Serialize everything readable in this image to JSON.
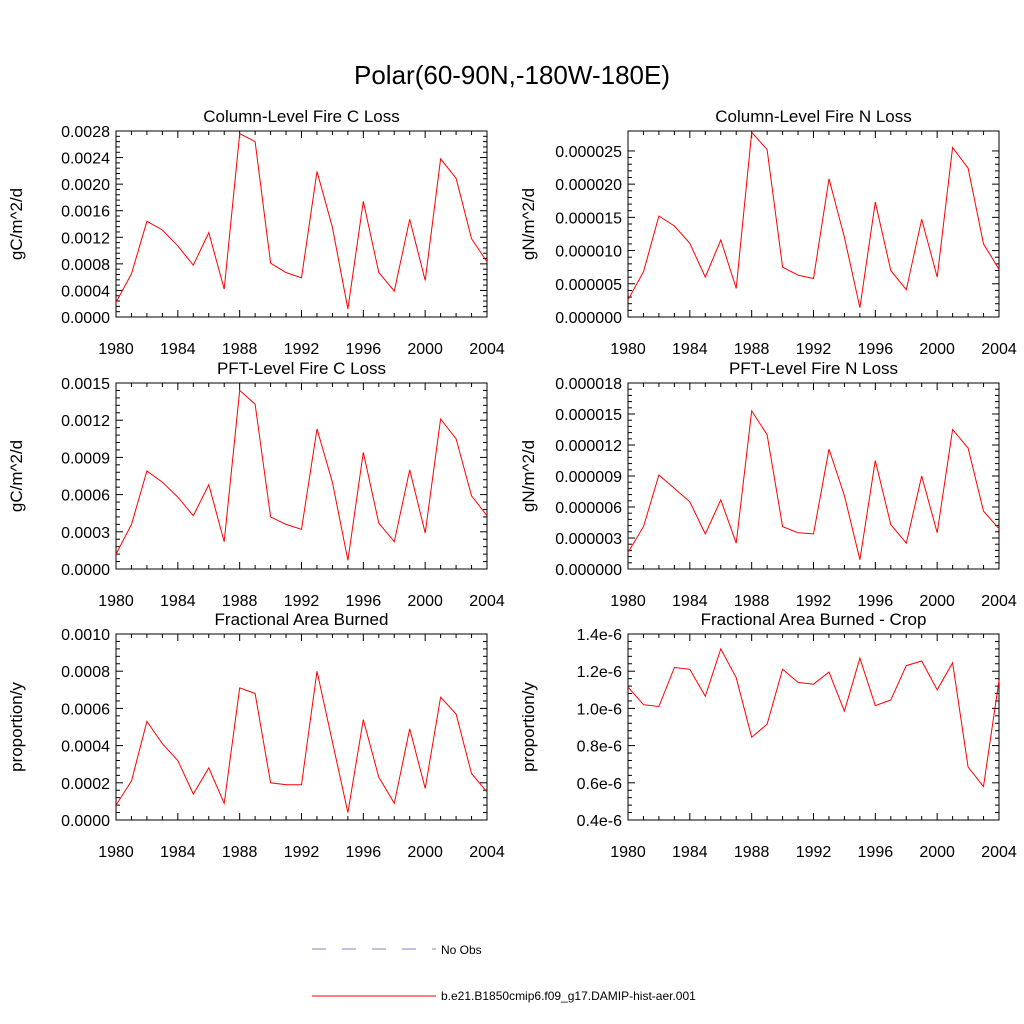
{
  "figure": {
    "title": "Polar(60-90N,-180W-180E)"
  },
  "legend": {
    "entries": [
      {
        "label": "No Obs",
        "color": "#8080c0",
        "dashed": true
      },
      {
        "label": "b.e21.B1850cmip6.f09_g17.DAMIP-hist-aer.001",
        "color": "#ff0000",
        "dashed": false
      }
    ]
  },
  "chart_data": [
    {
      "type": "line",
      "title": "Column-Level Fire C Loss",
      "ylabel": "gC/m^2/d",
      "xlim": [
        1980,
        2004
      ],
      "ylim": [
        0,
        0.0028
      ],
      "xticks": [
        "1980",
        "1984",
        "1988",
        "1992",
        "1996",
        "2000",
        "2004"
      ],
      "yticks": [
        "0.0000",
        "0.0004",
        "0.0008",
        "0.0012",
        "0.0016",
        "0.0020",
        "0.0024",
        "0.0028"
      ],
      "x": [
        1980,
        1981,
        1982,
        1983,
        1984,
        1985,
        1986,
        1987,
        1988,
        1989,
        1990,
        1991,
        1992,
        1993,
        1994,
        1995,
        1996,
        1997,
        1998,
        1999,
        2000,
        2001,
        2002,
        2003,
        2004
      ],
      "series": [
        {
          "color": "#ff0000",
          "values": [
            0.00022,
            0.00065,
            0.00144,
            0.00131,
            0.00107,
            0.00078,
            0.00127,
            0.00042,
            0.00276,
            0.00264,
            0.00081,
            0.00067,
            0.00059,
            0.00219,
            0.00135,
            0.00012,
            0.00174,
            0.00067,
            0.00039,
            0.00147,
            0.00055,
            0.00238,
            0.00209,
            0.00118,
            0.00083
          ]
        }
      ]
    },
    {
      "type": "line",
      "title": "Column-Level Fire N Loss",
      "ylabel": "gN/m^2/d",
      "xlim": [
        1980,
        2004
      ],
      "ylim": [
        0,
        2.8e-05
      ],
      "xticks": [
        "1980",
        "1984",
        "1988",
        "1992",
        "1996",
        "2000",
        "2004"
      ],
      "yticks": [
        "0.000000",
        "0.000005",
        "0.000010",
        "0.000015",
        "0.000020",
        "0.000025"
      ],
      "x": [
        1980,
        1981,
        1982,
        1983,
        1984,
        1985,
        1986,
        1987,
        1988,
        1989,
        1990,
        1991,
        1992,
        1993,
        1994,
        1995,
        1996,
        1997,
        1998,
        1999,
        2000,
        2001,
        2002,
        2003,
        2004
      ],
      "series": [
        {
          "color": "#ff0000",
          "values": [
            2.6e-06,
            6.8e-06,
            1.52e-05,
            1.37e-05,
            1.11e-05,
            6e-06,
            1.16e-05,
            4.3e-06,
            2.78e-05,
            2.52e-05,
            7.5e-06,
            6.3e-06,
            5.8e-06,
            2.08e-05,
            1.2e-05,
            1.4e-06,
            1.73e-05,
            7e-06,
            4.1e-06,
            1.47e-05,
            6e-06,
            2.55e-05,
            2.24e-05,
            1.1e-05,
            7.2e-06
          ]
        }
      ]
    },
    {
      "type": "line",
      "title": "PFT-Level Fire C Loss",
      "ylabel": "gC/m^2/d",
      "xlim": [
        1980,
        2004
      ],
      "ylim": [
        0,
        0.0015
      ],
      "xticks": [
        "1980",
        "1984",
        "1988",
        "1992",
        "1996",
        "2000",
        "2004"
      ],
      "yticks": [
        "0.0000",
        "0.0003",
        "0.0006",
        "0.0009",
        "0.0012",
        "0.0015"
      ],
      "x": [
        1980,
        1981,
        1982,
        1983,
        1984,
        1985,
        1986,
        1987,
        1988,
        1989,
        1990,
        1991,
        1992,
        1993,
        1994,
        1995,
        1996,
        1997,
        1998,
        1999,
        2000,
        2001,
        2002,
        2003,
        2004
      ],
      "series": [
        {
          "color": "#ff0000",
          "values": [
            0.00012,
            0.00036,
            0.00079,
            0.0007,
            0.00058,
            0.00043,
            0.00068,
            0.00022,
            0.00144,
            0.00133,
            0.00042,
            0.00036,
            0.00032,
            0.00113,
            0.0007,
            7e-05,
            0.00094,
            0.00037,
            0.00022,
            0.0008,
            0.00029,
            0.00121,
            0.00105,
            0.00059,
            0.00043
          ]
        }
      ]
    },
    {
      "type": "line",
      "title": "PFT-Level Fire N Loss",
      "ylabel": "gN/m^2/d",
      "xlim": [
        1980,
        2004
      ],
      "ylim": [
        0,
        1.8e-05
      ],
      "xticks": [
        "1980",
        "1984",
        "1988",
        "1992",
        "1996",
        "2000",
        "2004"
      ],
      "yticks": [
        "0.000000",
        "0.000003",
        "0.000006",
        "0.000009",
        "0.000012",
        "0.000015",
        "0.000018"
      ],
      "x": [
        1980,
        1981,
        1982,
        1983,
        1984,
        1985,
        1986,
        1987,
        1988,
        1989,
        1990,
        1991,
        1992,
        1993,
        1994,
        1995,
        1996,
        1997,
        1998,
        1999,
        2000,
        2001,
        2002,
        2003,
        2004
      ],
      "series": [
        {
          "color": "#ff0000",
          "values": [
            1.6e-06,
            4.1e-06,
            9.1e-06,
            7.8e-06,
            6.5e-06,
            3.4e-06,
            6.7e-06,
            2.5e-06,
            1.53e-05,
            1.3e-05,
            4.1e-06,
            3.5e-06,
            3.4e-06,
            1.16e-05,
            7.1e-06,
            9e-07,
            1.05e-05,
            4.3e-06,
            2.5e-06,
            9e-06,
            3.5e-06,
            1.35e-05,
            1.17e-05,
            5.6e-06,
            3.9e-06
          ]
        }
      ]
    },
    {
      "type": "line",
      "title": "Fractional Area Burned",
      "ylabel": "proportion/y",
      "xlim": [
        1980,
        2004
      ],
      "ylim": [
        0,
        0.001
      ],
      "xticks": [
        "1980",
        "1984",
        "1988",
        "1992",
        "1996",
        "2000",
        "2004"
      ],
      "yticks": [
        "0.0000",
        "0.0002",
        "0.0004",
        "0.0006",
        "0.0008",
        "0.0010"
      ],
      "x": [
        1980,
        1981,
        1982,
        1983,
        1984,
        1985,
        1986,
        1987,
        1988,
        1989,
        1990,
        1991,
        1992,
        1993,
        1994,
        1995,
        1996,
        1997,
        1998,
        1999,
        2000,
        2001,
        2002,
        2003,
        2004
      ],
      "series": [
        {
          "color": "#ff0000",
          "values": [
            8e-05,
            0.00021,
            0.00053,
            0.00041,
            0.00032,
            0.00014,
            0.00028,
            9e-05,
            0.00071,
            0.00068,
            0.0002,
            0.00019,
            0.00019,
            0.0008,
            0.00042,
            4e-05,
            0.00054,
            0.00023,
            9e-05,
            0.00049,
            0.00017,
            0.00066,
            0.00057,
            0.00025,
            0.00015
          ]
        }
      ]
    },
    {
      "type": "line",
      "title": "Fractional Area Burned - Crop",
      "ylabel": "proportion/y",
      "xlim": [
        1980,
        2004
      ],
      "ylim": [
        4e-07,
        1.4e-06
      ],
      "xticks": [
        "1980",
        "1984",
        "1988",
        "1992",
        "1996",
        "2000",
        "2004"
      ],
      "yticks": [
        "0.4e-6",
        "0.6e-6",
        "0.8e-6",
        "1.0e-6",
        "1.2e-6",
        "1.4e-6"
      ],
      "x": [
        1980,
        1981,
        1982,
        1983,
        1984,
        1985,
        1986,
        1987,
        1988,
        1989,
        1990,
        1991,
        1992,
        1993,
        1994,
        1995,
        1996,
        1997,
        1998,
        1999,
        2000,
        2001,
        2002,
        2003,
        2004
      ],
      "series": [
        {
          "color": "#ff0000",
          "values": [
            1.115e-06,
            1.02e-06,
            1.01e-06,
            1.22e-06,
            1.21e-06,
            1.065e-06,
            1.32e-06,
            1.165e-06,
            8.45e-07,
            9.15e-07,
            1.21e-06,
            1.14e-06,
            1.13e-06,
            1.195e-06,
            9.85e-07,
            1.27e-06,
            1.015e-06,
            1.045e-06,
            1.23e-06,
            1.255e-06,
            1.1e-06,
            1.245e-06,
            6.85e-07,
            5.8e-07,
            1.15e-06
          ]
        }
      ]
    }
  ]
}
